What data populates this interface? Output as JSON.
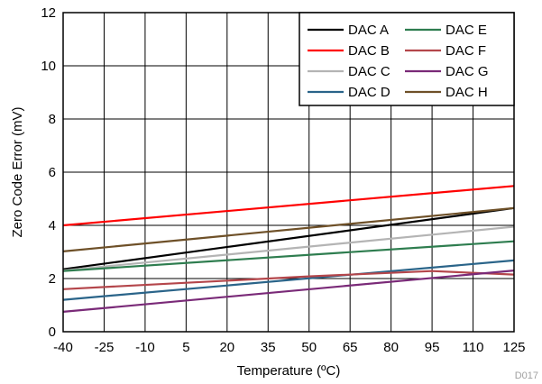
{
  "chart_data": {
    "type": "line",
    "title": "",
    "xlabel": "Temperature (ºC)",
    "ylabel": "Zero Code Error (mV)",
    "xlim": [
      -40,
      125
    ],
    "ylim": [
      0,
      12
    ],
    "xticks": [
      -40,
      -25,
      -10,
      5,
      20,
      35,
      50,
      65,
      80,
      95,
      110,
      125
    ],
    "yticks": [
      0,
      2,
      4,
      6,
      8,
      10,
      12
    ],
    "grid": true,
    "legend_position": "top-right",
    "figure_code": "D017",
    "series": [
      {
        "name": "DAC A",
        "color": "#000000",
        "x": [
          -40,
          125
        ],
        "y": [
          2.35,
          4.65
        ]
      },
      {
        "name": "DAC B",
        "color": "#ff0000",
        "x": [
          -40,
          125
        ],
        "y": [
          4.0,
          5.48
        ]
      },
      {
        "name": "DAC C",
        "color": "#b4b4b4",
        "x": [
          -40,
          125
        ],
        "y": [
          2.3,
          3.95
        ]
      },
      {
        "name": "DAC D",
        "color": "#2a6489",
        "x": [
          -40,
          125
        ],
        "y": [
          1.2,
          2.68
        ]
      },
      {
        "name": "DAC E",
        "color": "#2e7d4f",
        "x": [
          -40,
          125
        ],
        "y": [
          2.28,
          3.4
        ]
      },
      {
        "name": "DAC F",
        "color": "#b4464b",
        "x": [
          -40,
          50,
          95,
          125
        ],
        "y": [
          1.6,
          2.08,
          2.28,
          2.15
        ]
      },
      {
        "name": "DAC G",
        "color": "#7a2a78",
        "x": [
          -40,
          125
        ],
        "y": [
          0.75,
          2.3
        ]
      },
      {
        "name": "DAC H",
        "color": "#6e5028",
        "x": [
          -40,
          125
        ],
        "y": [
          3.02,
          4.65
        ]
      }
    ]
  }
}
